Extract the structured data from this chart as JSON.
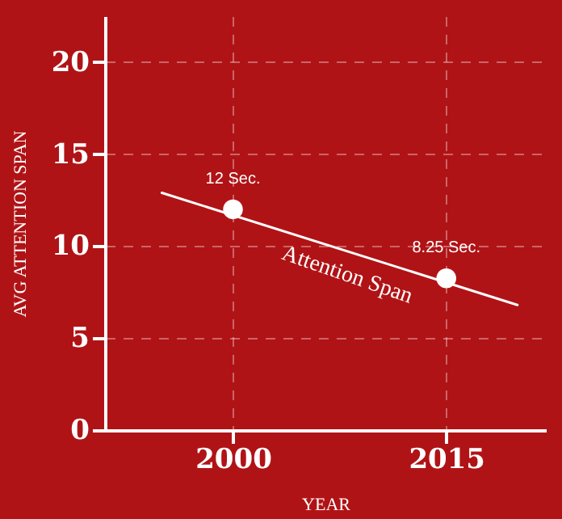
{
  "chart_data": {
    "type": "scatter",
    "xlabel": "YEAR",
    "ylabel": "AVG ATTENTION SPAN",
    "xlim": [
      1991,
      2022
    ],
    "xticks": [
      2000,
      2015
    ],
    "ylim": [
      0,
      22.5
    ],
    "yticks": [
      0,
      5,
      10,
      15,
      20
    ],
    "grid": true,
    "marker": "circle",
    "series": [
      {
        "type": "line",
        "color": "#ffffff",
        "x": [
          1995,
          2020
        ],
        "values": [
          12.9,
          6.8
        ],
        "line_style": "solid",
        "marker": "none"
      },
      {
        "color": "#ffffff",
        "x": [
          2000,
          2015
        ],
        "values": [
          12,
          8.25
        ],
        "value_labels": [
          "12 Sec.",
          "8.25 Sec."
        ]
      }
    ],
    "annotations": [
      "Attention Span"
    ]
  }
}
